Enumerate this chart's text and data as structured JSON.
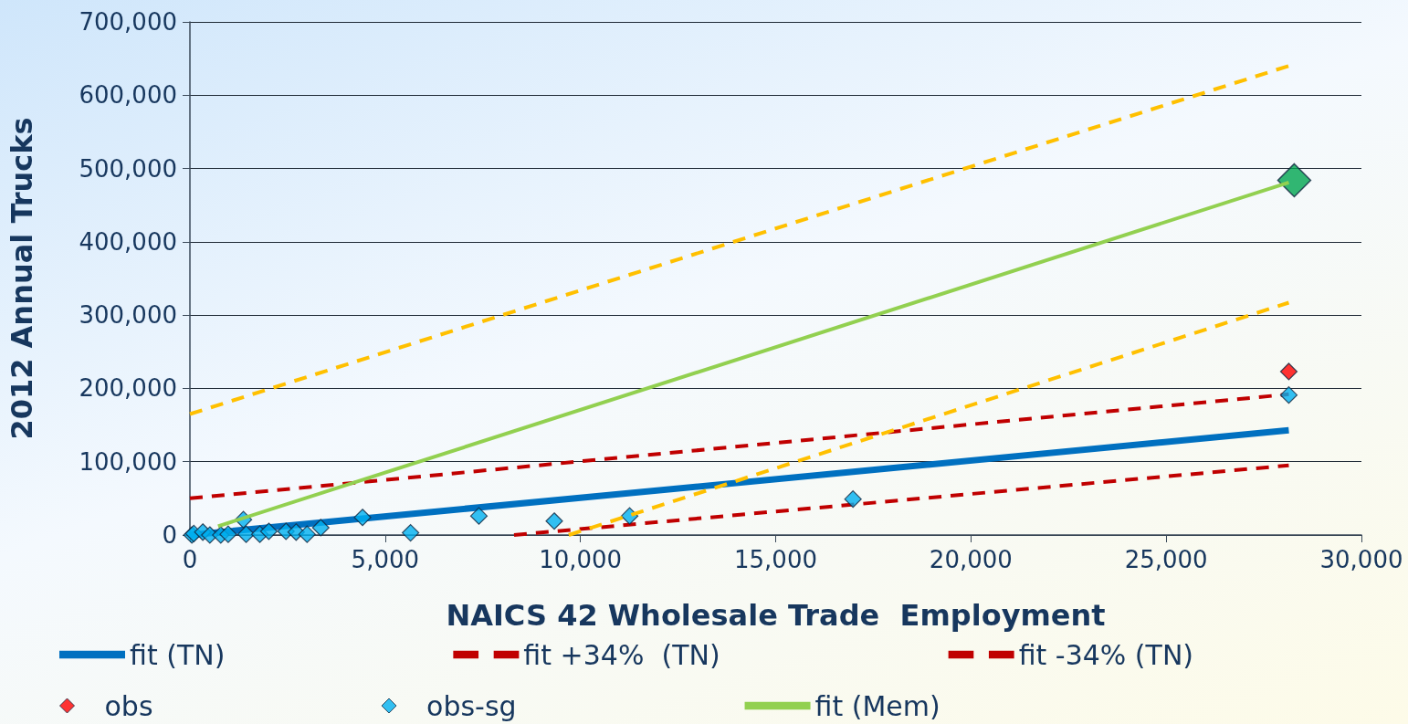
{
  "chart_data": {
    "type": "line",
    "xlabel": "NAICS 42 Wholesale Trade  Employment",
    "ylabel": "2012 Annual Trucks",
    "xlim": [
      0,
      30000
    ],
    "xticks": [
      0,
      {
        "value": 5000,
        "label": "5,000"
      },
      {
        "value": 10000,
        "label": "10,000"
      },
      {
        "value": 15000,
        "label": "15,000"
      },
      {
        "value": 20000,
        "label": "20,000"
      },
      {
        "value": 25000,
        "label": "25,000"
      },
      {
        "value": 30000,
        "label": "30,000"
      }
    ],
    "ylim": [
      0,
      700000
    ],
    "yticks": [
      0,
      {
        "value": 100000,
        "label": "100,000"
      },
      {
        "value": 200000,
        "label": "200,000"
      },
      {
        "value": 300000,
        "label": "300,000"
      },
      {
        "value": 400000,
        "label": "400,000"
      },
      {
        "value": 500000,
        "label": "500,000"
      },
      {
        "value": 600000,
        "label": "600,000"
      },
      {
        "value": 700000,
        "label": "700,000"
      }
    ],
    "grid": "y",
    "legend": "bottom",
    "series": [
      {
        "name": "fit (TN)",
        "color": "#0070c0",
        "line_style": "solid",
        "marker": "none",
        "x": [
          0,
          28140
        ],
        "values": [
          0,
          143000
        ]
      },
      {
        "name": "fit +34%  (TN)",
        "color": "#c00000",
        "line_style": "dashed",
        "marker": "none",
        "x": [
          0,
          28140
        ],
        "values": [
          50000,
          192000
        ]
      },
      {
        "name": "fit -34% (TN)",
        "color": "#c00000",
        "line_style": "dashed",
        "marker": "none",
        "x": [
          8300,
          28140
        ],
        "values": [
          0,
          95000
        ]
      },
      {
        "name": "obs",
        "type": "scatter",
        "color": "#ff0000",
        "marker": "diamond",
        "x": [
          28140
        ],
        "values": [
          223000
        ]
      },
      {
        "name": "obs-sg",
        "type": "scatter",
        "color": "#00b0f0",
        "marker": "diamond",
        "x": [
          50,
          100,
          250,
          330,
          510,
          600,
          700,
          790,
          980,
          1370,
          1440,
          1790,
          2020,
          2460,
          2720,
          3000,
          3350,
          4420,
          5650,
          7400,
          9330,
          11260,
          16980,
          28140
        ],
        "values": [
          0,
          2000,
          null,
          4000,
          0,
          null,
          null,
          0,
          1000,
          21000,
          1000,
          1000,
          5000,
          5000,
          4000,
          1000,
          10000,
          24000,
          3000,
          26000,
          19000,
          26000,
          49000,
          191000
        ]
      },
      {
        "name": "fit (Mem)",
        "color": "#92d050",
        "line_style": "solid",
        "marker": "none",
        "x": [
          720,
          28140
        ],
        "values": [
          12000,
          481000
        ]
      },
      {
        "color": "#ffc000",
        "line_style": "dashed",
        "marker": "none",
        "x": [
          0,
          28140
        ],
        "values": [
          165000,
          640000
        ]
      },
      {
        "color": "#ffc000",
        "line_style": "dashed",
        "marker": "none",
        "x": [
          9700,
          28140
        ],
        "values": [
          0,
          317000
        ]
      },
      {
        "type": "scatter",
        "color": "#00a550",
        "marker": "diamond",
        "x": [
          28280
        ],
        "values": [
          484000
        ]
      }
    ]
  }
}
